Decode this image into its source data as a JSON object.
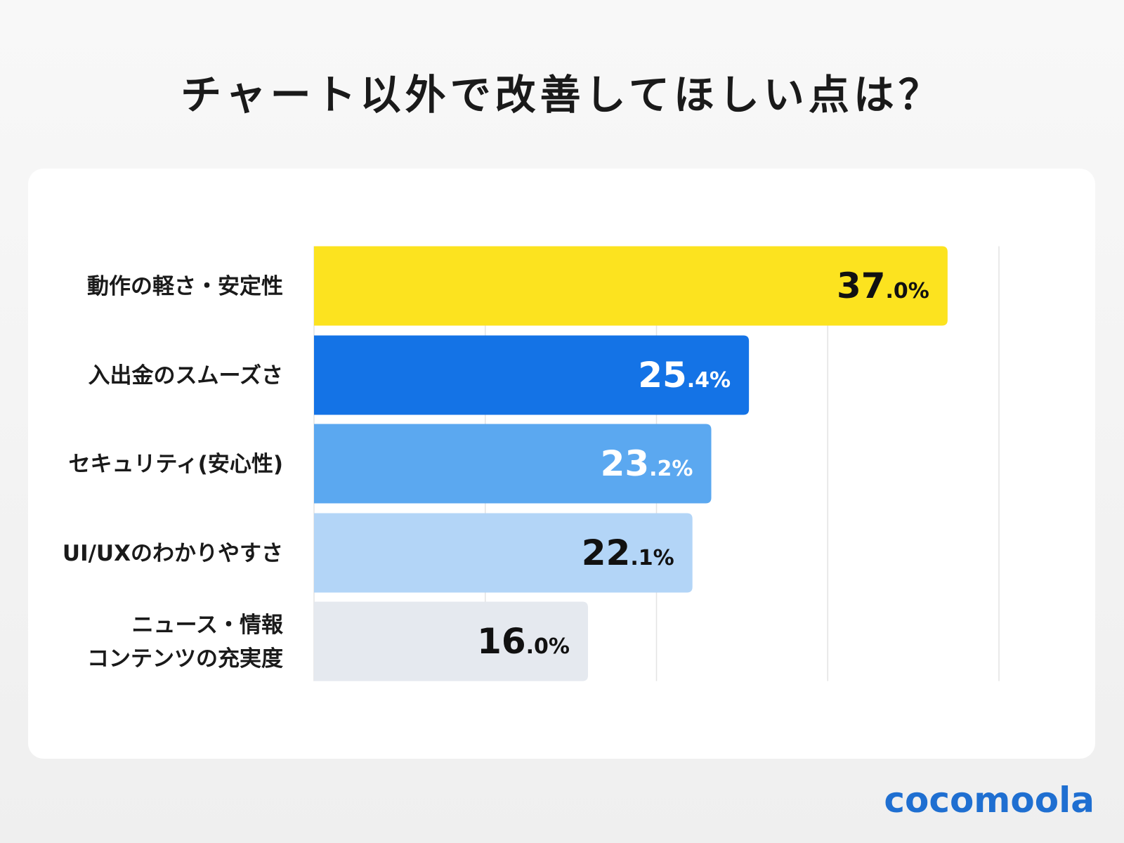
{
  "title": "チャート以外で改善してほしい点は？",
  "logo": "cocomoola",
  "chart_data": {
    "type": "bar",
    "orientation": "horizontal",
    "title": "チャート以外で改善してほしい点は？",
    "categories": [
      "動作の軽さ・安定性",
      "入出金のスムーズさ",
      "セキュリティ(安心性)",
      "UI/UXのわかりやすさ",
      "ニュース・情報\nコンテンツの充実度"
    ],
    "values": [
      37.0,
      25.4,
      23.2,
      22.1,
      16.0
    ],
    "unit": "%",
    "colors": [
      "#FCE31F",
      "#1473E6",
      "#5BA8F0",
      "#B3D5F7",
      "#E5E9EF"
    ],
    "label_colors": [
      "#111111",
      "#ffffff",
      "#ffffff",
      "#111111",
      "#111111"
    ],
    "xlim": [
      0,
      40
    ],
    "grid": true,
    "gridlines": [
      10,
      20,
      30,
      40
    ]
  }
}
